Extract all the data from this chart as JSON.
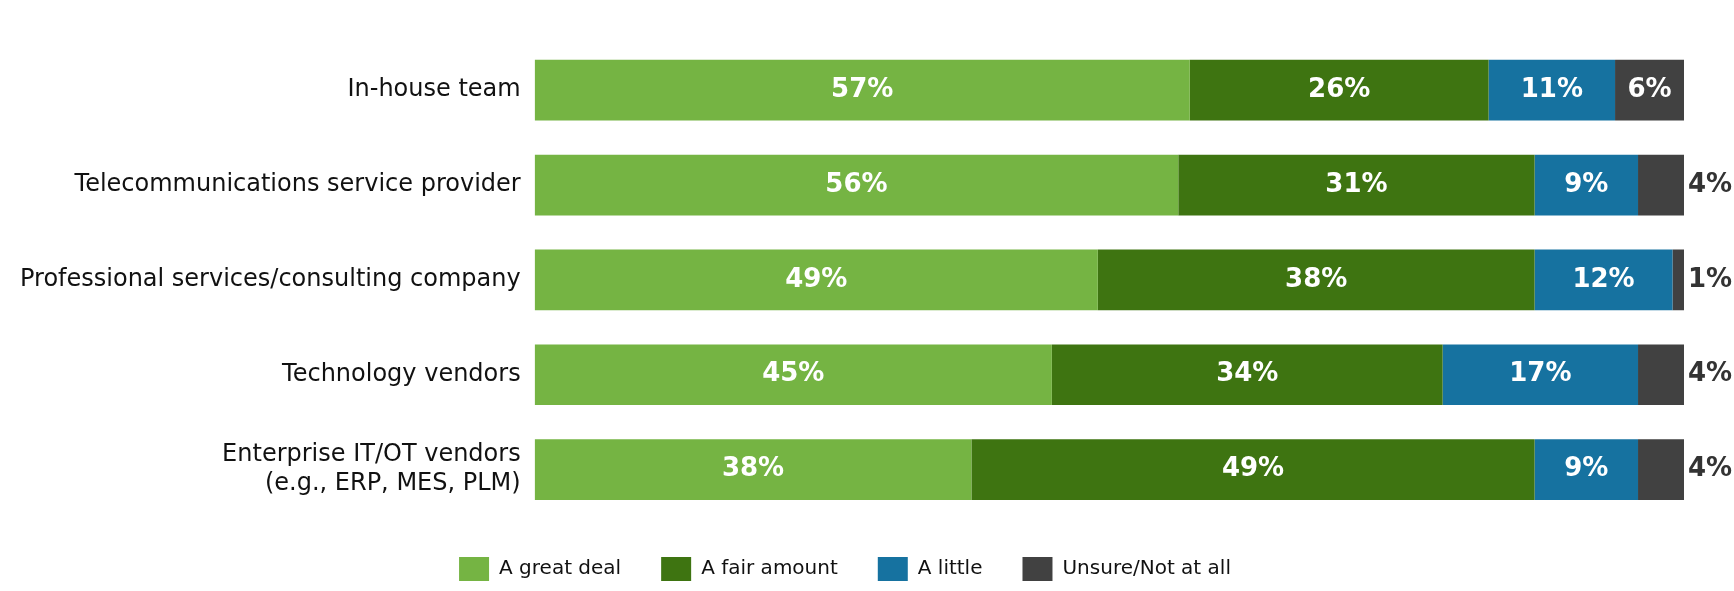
{
  "chart_data": {
    "type": "bar",
    "orientation": "horizontal",
    "stacked": true,
    "categories": [
      "In-house team",
      "Telecommunications service provider",
      "Professional services/consulting company",
      "Technology vendors",
      "Enterprise IT/OT vendors\n(e.g., ERP, MES, PLM)"
    ],
    "series": [
      {
        "name": "A great deal",
        "color": "#75b443",
        "values": [
          57,
          56,
          49,
          45,
          38
        ],
        "value_labels": [
          "57%",
          "56%",
          "49%",
          "45%",
          "38%"
        ]
      },
      {
        "name": "A fair amount",
        "color": "#3e7411",
        "values": [
          26,
          31,
          38,
          34,
          49
        ],
        "value_labels": [
          "26%",
          "31%",
          "38%",
          "34%",
          "49%"
        ]
      },
      {
        "name": "A little",
        "color": "#1672a0",
        "values": [
          11,
          9,
          12,
          17,
          9
        ],
        "value_labels": [
          "11%",
          "9%",
          "12%",
          "17%",
          "9%"
        ]
      },
      {
        "name": "Unsure/Not at all",
        "color": "#414141",
        "values": [
          6,
          4,
          1,
          4,
          4
        ],
        "value_labels": [
          "6%",
          "4%",
          "1%",
          "4%",
          "4%"
        ]
      }
    ],
    "tick_labels": "y",
    "legend": "bottom"
  }
}
